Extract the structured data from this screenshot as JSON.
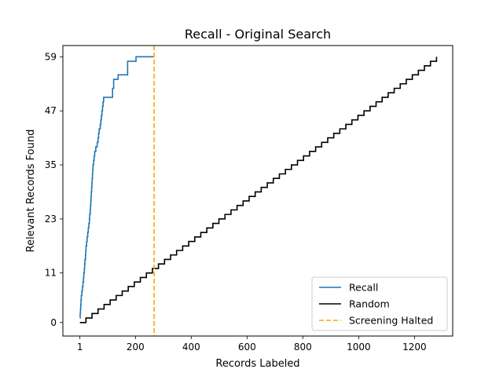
{
  "chart_data": {
    "type": "line",
    "title": "Recall - Original Search",
    "xlabel": "Records Labeled",
    "ylabel": "Relevant Records Found",
    "xlim": [
      -60,
      1337
    ],
    "ylim": [
      -3,
      61.5
    ],
    "xticks": [
      1,
      200,
      400,
      600,
      800,
      1000,
      1200
    ],
    "yticks": [
      0,
      11,
      23,
      35,
      47,
      59
    ],
    "grid": false,
    "legend_position": "lower-right",
    "series": [
      {
        "name": "Recall",
        "color": "#1f77b4",
        "style": "solid",
        "steps": [
          [
            1,
            1
          ],
          [
            2,
            2
          ],
          [
            3,
            3
          ],
          [
            4,
            4
          ],
          [
            5,
            5
          ],
          [
            6,
            6
          ],
          [
            8,
            7
          ],
          [
            10,
            8
          ],
          [
            12,
            9
          ],
          [
            14,
            10
          ],
          [
            15,
            11
          ],
          [
            17,
            12
          ],
          [
            18,
            13
          ],
          [
            19,
            14
          ],
          [
            21,
            15
          ],
          [
            22,
            16
          ],
          [
            23,
            17
          ],
          [
            25,
            18
          ],
          [
            27,
            19
          ],
          [
            29,
            20
          ],
          [
            31,
            21
          ],
          [
            33,
            22
          ],
          [
            35,
            23
          ],
          [
            36,
            24
          ],
          [
            38,
            25
          ],
          [
            39,
            26
          ],
          [
            40,
            27
          ],
          [
            41,
            28
          ],
          [
            42,
            29
          ],
          [
            43,
            30
          ],
          [
            44,
            31
          ],
          [
            45,
            32
          ],
          [
            46,
            33
          ],
          [
            47,
            34
          ],
          [
            48,
            35
          ],
          [
            50,
            36
          ],
          [
            52,
            37
          ],
          [
            54,
            38
          ],
          [
            58,
            39
          ],
          [
            63,
            40
          ],
          [
            66,
            41
          ],
          [
            68,
            42
          ],
          [
            70,
            43
          ],
          [
            74,
            44
          ],
          [
            76,
            45
          ],
          [
            78,
            46
          ],
          [
            80,
            47
          ],
          [
            82,
            48
          ],
          [
            84,
            49
          ],
          [
            86,
            50
          ],
          [
            118,
            52
          ],
          [
            122,
            54
          ],
          [
            138,
            55
          ],
          [
            172,
            58
          ],
          [
            202,
            59
          ],
          [
            267,
            59
          ]
        ]
      },
      {
        "name": "Random",
        "color": "#000000",
        "style": "solid",
        "final_x": 1278,
        "final_y": 59
      },
      {
        "name": "Screening Halted",
        "color": "#ffa500",
        "style": "dashed",
        "x": 267
      }
    ]
  }
}
